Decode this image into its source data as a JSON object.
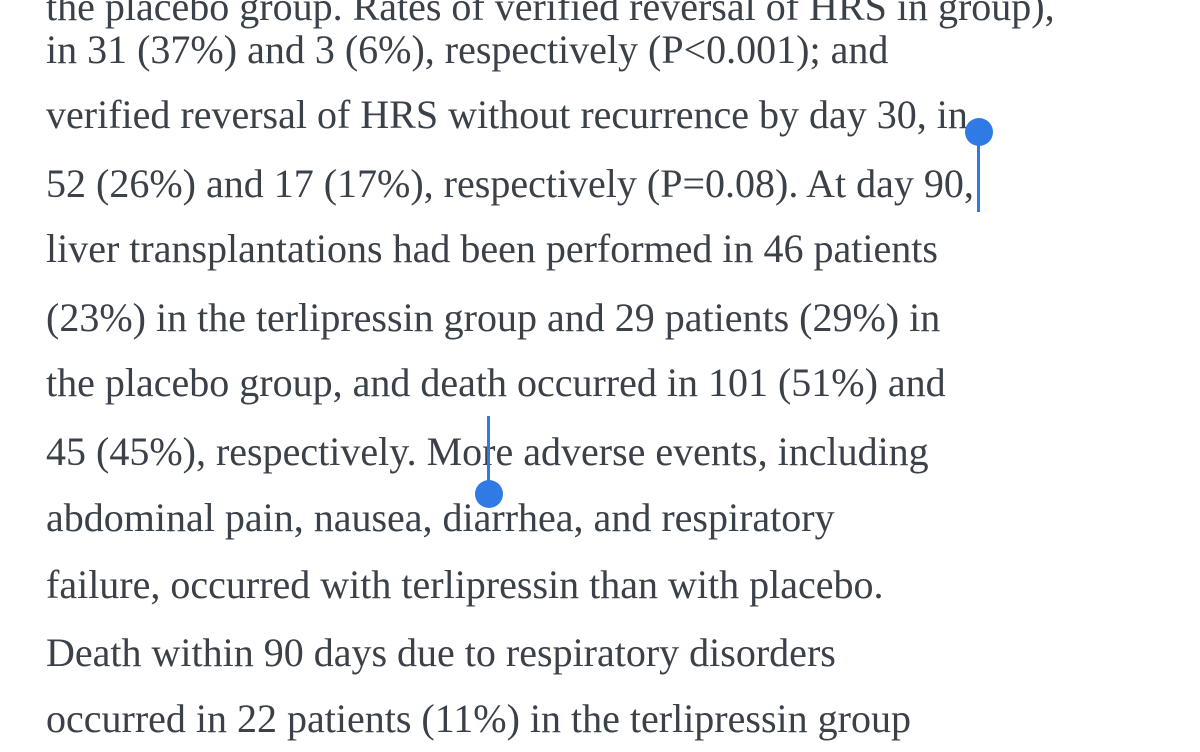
{
  "article": {
    "lines": [
      "the placebo group. Rates of verified reversal of HRS in group),",
      "in 31 (37%) and 3 (6%), respectively (P<0.001); and",
      "verified reversal of HRS without recurrence by day 30, in",
      "52 (26%) and 17 (17%), respectively (P=0.08). At day 90,",
      "liver transplantations had been performed in 46 patients",
      "(23%) in the terlipressin group and 29 patients (29%) in",
      "the placebo group, and death occurred in 101 (51%) and",
      "45 (45%), respectively. More adverse events, including",
      "abdominal pain, nausea, diarrhea, and respiratory",
      "failure, occurred with terlipressin than with placebo.",
      "Death within 90 days due to respiratory disorders",
      "occurred in 22 patients (11%) in the terlipressin group"
    ]
  },
  "selection": {
    "text": "day 90, liver transplantations had been performed in 46 patients (23%) in the terlipressin group and 29 patients (29%) in the placebo group, and death occurred in 101 (51%) and 45 (45%), respectively.",
    "highlight_color": "#cfe2fb",
    "handle_color": "#2f7ae5"
  }
}
